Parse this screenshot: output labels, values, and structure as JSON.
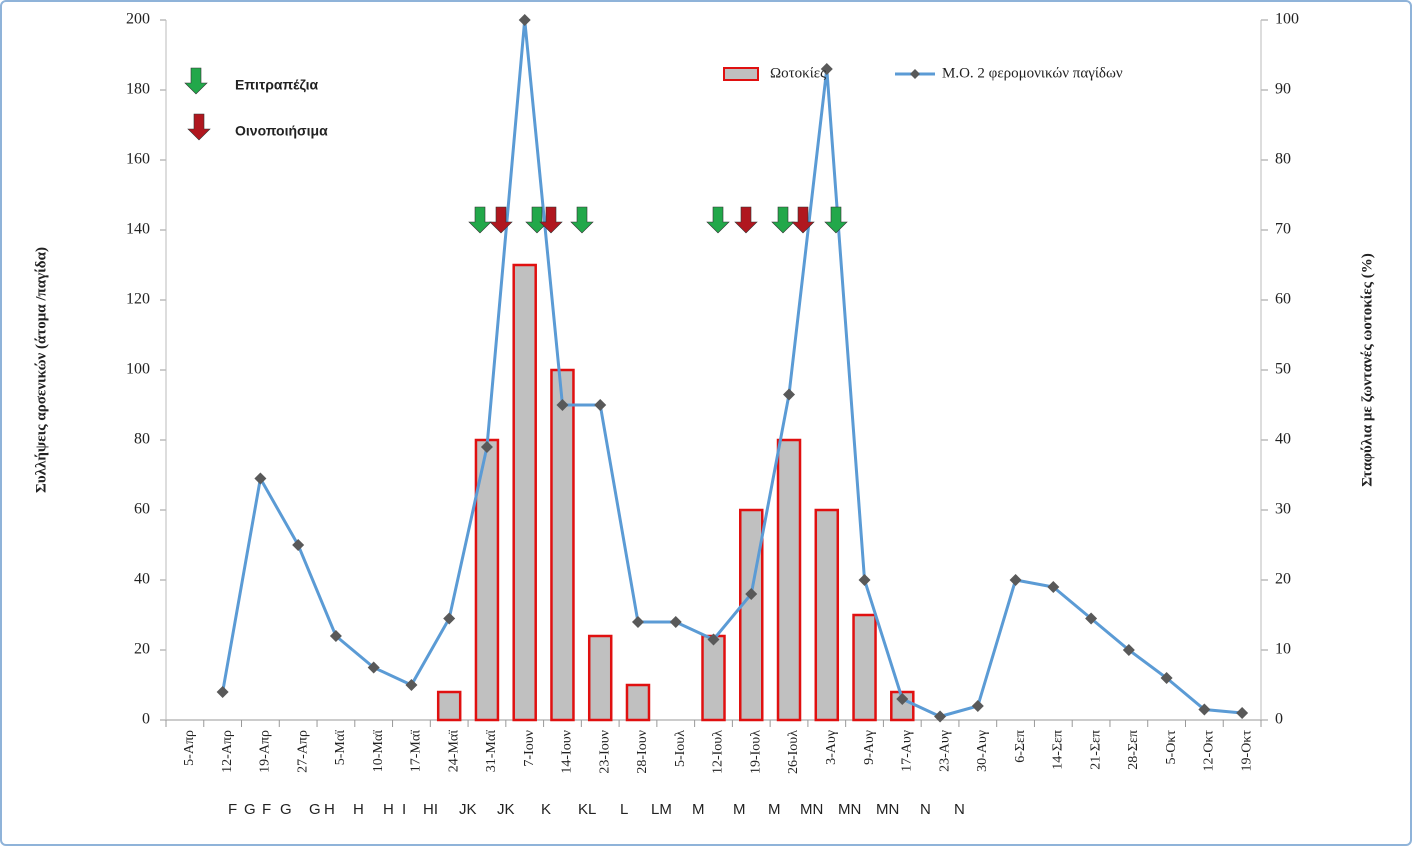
{
  "chart_data": {
    "type": "combo",
    "y_label": "Συλλήψεις αρσενικών (άτομα /παγίδα)",
    "y2_label": "Σταφύλια με ζωντανές ωοτοκίες (%)",
    "categories": [
      "5-Απρ",
      "12-Απρ",
      "19-Απρ",
      "27-Απρ",
      "5-Μαϊ",
      "10-Μαϊ",
      "17-Μαϊ",
      "24-Μαϊ",
      "31-Μαϊ",
      "7-Ιουν",
      "14-Ιουν",
      "23-Ιουν",
      "28-Ιουν",
      "5-Ιουλ",
      "12-Ιουλ",
      "19-Ιουλ",
      "26-Ιουλ",
      "3-Αυγ",
      "9-Αυγ",
      "17-Αυγ",
      "23-Αυγ",
      "30-Αυγ",
      "6-Σεπ",
      "14-Σεπ",
      "21-Σεπ",
      "28-Σεπ",
      "5-Οκτ",
      "12-Οκτ",
      "19-Οκτ"
    ],
    "series": [
      {
        "name": "Ωοτοκίες",
        "type": "bar",
        "axis": "y2",
        "color": "#c0c0c0",
        "edge_color": "#e01010",
        "values": [
          null,
          null,
          null,
          null,
          null,
          null,
          null,
          4,
          40,
          65,
          50,
          12,
          5,
          null,
          12,
          30,
          40,
          30,
          15,
          4,
          null,
          null,
          null,
          null,
          null,
          null,
          null,
          null,
          null
        ]
      },
      {
        "name": "Μ.Ο. 2 φερομονικών παγίδων",
        "type": "line",
        "color": "#5b9bd5",
        "marker_color": "#595959",
        "values": [
          null,
          8,
          69,
          50,
          24,
          15,
          10,
          29,
          78,
          200,
          90,
          90,
          28,
          28,
          23,
          36,
          93,
          186,
          40,
          6,
          1,
          4,
          40,
          38,
          29,
          20,
          12,
          3,
          2
        ]
      }
    ],
    "ylim": [
      0,
      200
    ],
    "yticks": [
      0,
      20,
      40,
      60,
      80,
      100,
      120,
      140,
      160,
      180,
      200
    ],
    "y2lim": [
      0,
      100
    ],
    "y2ticks": [
      0,
      10,
      20,
      30,
      40,
      50,
      60,
      70,
      80,
      90,
      100
    ],
    "arrow_legend": [
      {
        "label": "Επιτραπέζια",
        "color": "#22a84a"
      },
      {
        "label": "Οινοποιήσιμα",
        "color": "#b0171f"
      }
    ],
    "bottom_labels": [
      "F",
      "G",
      "F",
      "G",
      "G",
      "H",
      "H",
      "H",
      "I",
      "HI",
      "JK",
      "JK",
      "K",
      "KL",
      "L",
      "LM",
      "M",
      "M",
      "M",
      "MN",
      "MN",
      "MN",
      "N",
      "N"
    ]
  }
}
